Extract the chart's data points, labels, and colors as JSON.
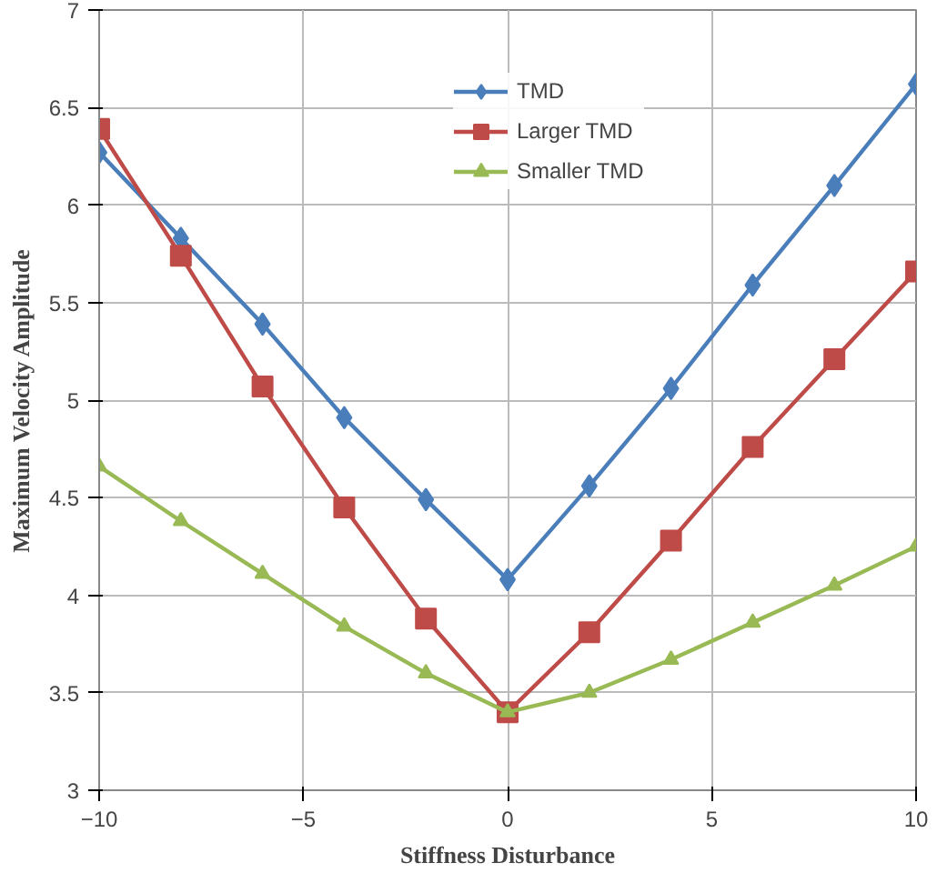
{
  "chart_data": {
    "type": "line",
    "xlabel": "Stiffness Disturbance",
    "ylabel": "Maximum Velocity Amplitude",
    "x": [
      -10,
      -8,
      -6,
      -4,
      -2,
      0,
      2,
      4,
      6,
      8,
      10
    ],
    "xlim": [
      -10,
      10
    ],
    "xticks": [
      -10,
      -5,
      0,
      5,
      10
    ],
    "ylim": [
      3,
      7
    ],
    "yticks": [
      3,
      3.5,
      4,
      4.5,
      5,
      5.5,
      6,
      6.5,
      7
    ],
    "grid": true,
    "legend": "top",
    "series": [
      {
        "name": "TMD",
        "color": "#4a7ebb",
        "marker": "diamond",
        "values": [
          6.27,
          5.83,
          5.39,
          4.91,
          4.49,
          4.08,
          4.56,
          5.06,
          5.59,
          6.1,
          6.62
        ]
      },
      {
        "name": "Larger TMD",
        "color": "#be4b48",
        "marker": "square",
        "values": [
          6.39,
          5.74,
          5.07,
          4.45,
          3.88,
          3.4,
          3.81,
          4.28,
          4.76,
          5.21,
          5.66
        ]
      },
      {
        "name": "Smaller TMD",
        "color": "#98b954",
        "marker": "triangle",
        "values": [
          4.66,
          4.38,
          4.11,
          3.84,
          3.6,
          3.4,
          3.5,
          3.67,
          3.86,
          4.05,
          4.25
        ]
      }
    ]
  }
}
